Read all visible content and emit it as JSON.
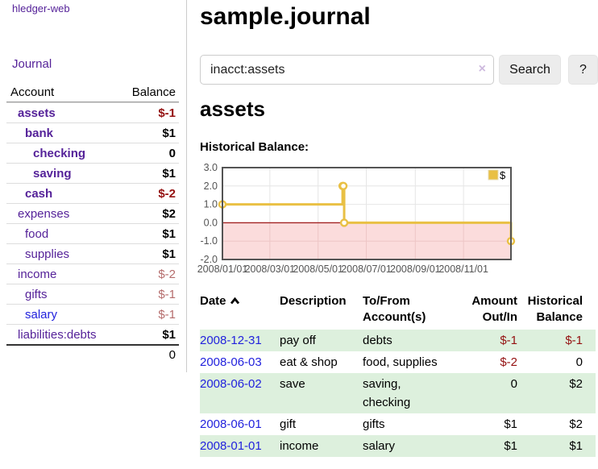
{
  "app": {
    "brand": "hledger-web",
    "nav_journal": "Journal"
  },
  "sidebar": {
    "header": {
      "account": "Account",
      "balance": "Balance"
    },
    "accounts": [
      {
        "name": "assets",
        "balance": "$-1"
      },
      {
        "name": "bank",
        "balance": "$1"
      },
      {
        "name": "checking",
        "balance": "0"
      },
      {
        "name": "saving",
        "balance": "$1"
      },
      {
        "name": "cash",
        "balance": "$-2"
      },
      {
        "name": "expenses",
        "balance": "$2"
      },
      {
        "name": "food",
        "balance": "$1"
      },
      {
        "name": "supplies",
        "balance": "$1"
      },
      {
        "name": "income",
        "balance": "$-2"
      },
      {
        "name": "gifts",
        "balance": "$-1"
      },
      {
        "name": "salary",
        "balance": "$-1"
      },
      {
        "name": "liabilities:debts",
        "balance": "$1"
      }
    ],
    "total": "0"
  },
  "header": {
    "title": "sample.journal"
  },
  "search": {
    "value": "inacct:assets",
    "clear_icon": "×",
    "button": "Search",
    "help": "?"
  },
  "main": {
    "account_heading": "assets",
    "chart_label": "Historical Balance:"
  },
  "chart_data": {
    "type": "line",
    "title": "Historical Balance",
    "step": true,
    "series": [
      {
        "name": "$",
        "color": "#e9c044",
        "points": [
          {
            "date": "2008-01-01",
            "value": 1
          },
          {
            "date": "2008-06-01",
            "value": 2
          },
          {
            "date": "2008-06-02",
            "value": 2
          },
          {
            "date": "2008-06-03",
            "value": 0
          },
          {
            "date": "2008-12-31",
            "value": -1
          }
        ]
      }
    ],
    "xdomain": [
      "2008-01-01",
      "2008-12-31"
    ],
    "ylim": [
      -2,
      3
    ],
    "ytick_values": [
      3,
      2,
      1,
      0,
      -1,
      -2
    ],
    "ytick_labels": [
      "3.0",
      "2.0",
      "1.0",
      "0.0",
      "-1.0",
      "-2.0"
    ],
    "xticks": [
      {
        "label": "2008/01/01",
        "date": "2008-01-01"
      },
      {
        "label": "2008/03/01",
        "date": "2008-03-01"
      },
      {
        "label": "2008/05/01",
        "date": "2008-05-01"
      },
      {
        "label": "2008/07/01",
        "date": "2008-07-01"
      },
      {
        "label": "2008/09/01",
        "date": "2008-09-01"
      },
      {
        "label": "2008/11/01",
        "date": "2008-11-01"
      }
    ],
    "grid": true,
    "legend_position": "top-right",
    "colors": {
      "negative_region": "#fbdcdc",
      "negative_grid": "#eec6c6",
      "grid": "#e6e6e6",
      "zero_line": "#a22323",
      "border": "#545454",
      "tick_text": "#545454"
    }
  },
  "register": {
    "columns": {
      "date": "Date",
      "description": "Description",
      "tofrom_line1": "To/From",
      "tofrom_line2": "Account(s)",
      "amount_line1": "Amount",
      "amount_line2": "Out/In",
      "balance_line1": "Historical",
      "balance_line2": "Balance"
    },
    "rows": [
      {
        "date": "2008-12-31",
        "description": "pay off",
        "accounts": "debts",
        "amount": "$-1",
        "balance": "$-1"
      },
      {
        "date": "2008-06-03",
        "description": "eat & shop",
        "accounts": "food, supplies",
        "amount": "$-2",
        "balance": "0"
      },
      {
        "date": "2008-06-02",
        "description": "save",
        "accounts": "saving, checking",
        "amount": "0",
        "balance": "$2"
      },
      {
        "date": "2008-06-01",
        "description": "gift",
        "accounts": "gifts",
        "amount": "$1",
        "balance": "$2"
      },
      {
        "date": "2008-01-01",
        "description": "income",
        "accounts": "salary",
        "amount": "$1",
        "balance": "$1"
      }
    ]
  },
  "theme": {
    "link_purple": "#552299",
    "link_blue": "#2222dd",
    "negative_red": "#941111",
    "negative_soft_red": "#b56c6c",
    "row_green": "#ddf0dd"
  }
}
